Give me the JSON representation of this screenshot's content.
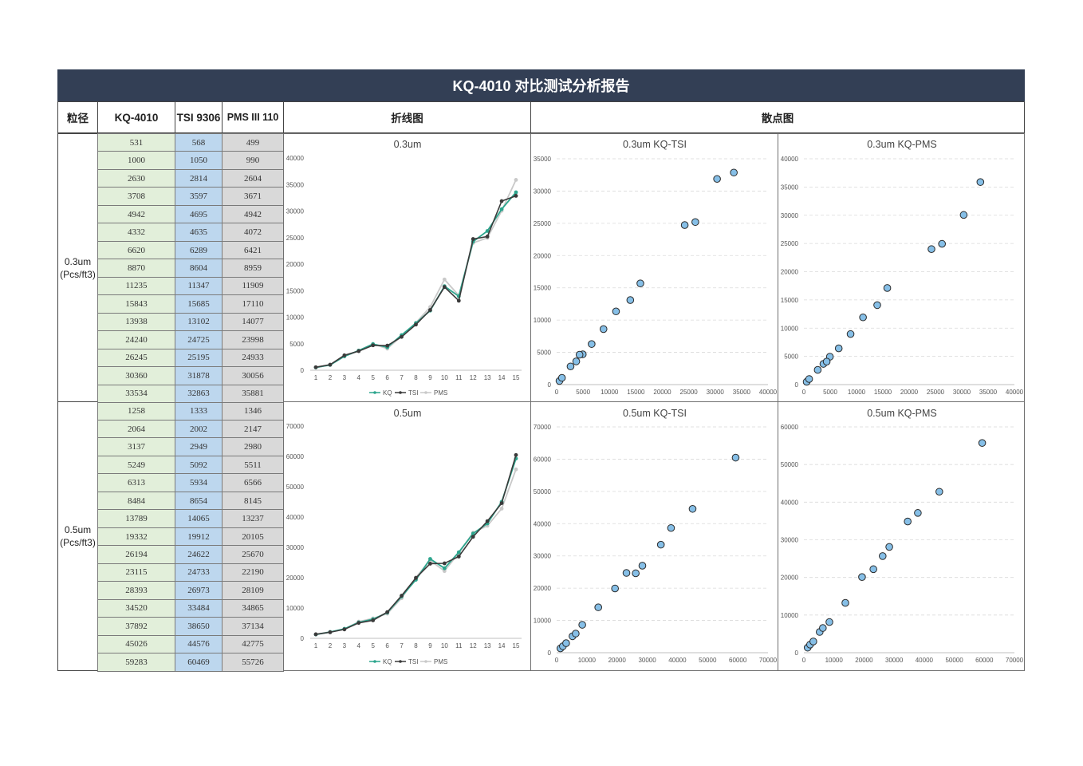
{
  "report": {
    "title": "KQ-4010 对比测试分析报告",
    "headers": {
      "size": "粒径",
      "kq": "KQ-4010",
      "tsi": "TSI 9306",
      "pms": "PMS III 110",
      "line": "折线图",
      "scatter": "散点图"
    }
  },
  "groups": [
    {
      "label_line1": "0.3um",
      "label_line2": "(Pcs/ft3)",
      "line_title": "0.3um",
      "scatter_tsi_title": "0.3um  KQ-TSI",
      "scatter_pms_title": "0.3um  KQ-PMS"
    },
    {
      "label_line1": "0.5um",
      "label_line2": "(Pcs/ft3)",
      "line_title": "0.5um",
      "scatter_tsi_title": "0.5um  KQ-TSI",
      "scatter_pms_title": "0.5um  KQ-PMS"
    }
  ],
  "chart_data": [
    {
      "type": "table",
      "group": "0.3um",
      "columns": [
        "KQ-4010",
        "TSI 9306",
        "PMS III 110"
      ],
      "kq": [
        531,
        1000,
        2630,
        3708,
        4942,
        4332,
        6620,
        8870,
        11235,
        15843,
        13938,
        24240,
        26245,
        30360,
        33534
      ],
      "tsi": [
        568,
        1050,
        2814,
        3597,
        4695,
        4635,
        6289,
        8604,
        11347,
        15685,
        13102,
        24725,
        25195,
        31878,
        32863
      ],
      "pms": [
        499,
        990,
        2604,
        3671,
        4942,
        4072,
        6421,
        8959,
        11909,
        17110,
        14077,
        23998,
        24933,
        30056,
        35881
      ]
    },
    {
      "type": "table",
      "group": "0.5um",
      "columns": [
        "KQ-4010",
        "TSI 9306",
        "PMS III 110"
      ],
      "kq": [
        1258,
        2064,
        3137,
        5249,
        6313,
        8484,
        13789,
        19332,
        26194,
        23115,
        28393,
        34520,
        37892,
        45026,
        59283
      ],
      "tsi": [
        1333,
        2002,
        2949,
        5092,
        5934,
        8654,
        14065,
        19912,
        24622,
        24733,
        26973,
        33484,
        38650,
        44576,
        60469
      ],
      "pms": [
        1346,
        2147,
        2980,
        5511,
        6566,
        8145,
        13237,
        20105,
        25670,
        22190,
        28109,
        34865,
        37134,
        42775,
        55726
      ]
    },
    {
      "type": "line",
      "title": "0.3um",
      "x": [
        "1",
        "2",
        "3",
        "4",
        "5",
        "6",
        "7",
        "8",
        "9",
        "10",
        "11",
        "12",
        "13",
        "14",
        "15"
      ],
      "ylim": [
        0,
        40000
      ],
      "yticks": [
        0,
        5000,
        10000,
        15000,
        20000,
        25000,
        30000,
        35000,
        40000
      ],
      "legend": "bottom",
      "series": [
        {
          "name": "KQ",
          "color": "#2ca58d",
          "values_ref": "0.3um.kq"
        },
        {
          "name": "TSI",
          "color": "#3a3a3a",
          "values_ref": "0.3um.tsi"
        },
        {
          "name": "PMS",
          "color": "#c9c9c9",
          "values_ref": "0.3um.pms"
        }
      ]
    },
    {
      "type": "line",
      "title": "0.5um",
      "x": [
        "1",
        "2",
        "3",
        "4",
        "5",
        "6",
        "7",
        "8",
        "9",
        "10",
        "11",
        "12",
        "13",
        "14",
        "15"
      ],
      "ylim": [
        0,
        70000
      ],
      "yticks": [
        0,
        10000,
        20000,
        30000,
        40000,
        50000,
        60000,
        70000
      ],
      "legend": "bottom",
      "series": [
        {
          "name": "KQ",
          "color": "#2ca58d",
          "values_ref": "0.5um.kq"
        },
        {
          "name": "TSI",
          "color": "#3a3a3a",
          "values_ref": "0.5um.tsi"
        },
        {
          "name": "PMS",
          "color": "#c9c9c9",
          "values_ref": "0.5um.pms"
        }
      ]
    },
    {
      "type": "scatter",
      "title": "0.3um  KQ-TSI",
      "x_ref": "0.3um.kq",
      "y_ref": "0.3um.tsi",
      "xlim": [
        0,
        40000
      ],
      "ylim": [
        0,
        35000
      ],
      "xticks": [
        0,
        5000,
        10000,
        15000,
        20000,
        25000,
        30000,
        35000,
        40000
      ],
      "yticks": [
        0,
        5000,
        10000,
        15000,
        20000,
        25000,
        30000,
        35000
      ],
      "marker_color": "#86bfe7"
    },
    {
      "type": "scatter",
      "title": "0.3um  KQ-PMS",
      "x_ref": "0.3um.kq",
      "y_ref": "0.3um.pms",
      "xlim": [
        0,
        40000
      ],
      "ylim": [
        0,
        40000
      ],
      "xticks": [
        0,
        5000,
        10000,
        15000,
        20000,
        25000,
        30000,
        35000,
        40000
      ],
      "yticks": [
        0,
        5000,
        10000,
        15000,
        20000,
        25000,
        30000,
        35000,
        40000
      ],
      "marker_color": "#86bfe7"
    },
    {
      "type": "scatter",
      "title": "0.5um  KQ-TSI",
      "x_ref": "0.5um.kq",
      "y_ref": "0.5um.tsi",
      "xlim": [
        0,
        70000
      ],
      "ylim": [
        0,
        70000
      ],
      "xticks": [
        0,
        10000,
        20000,
        30000,
        40000,
        50000,
        60000,
        70000
      ],
      "yticks": [
        0,
        10000,
        20000,
        30000,
        40000,
        50000,
        60000,
        70000
      ],
      "marker_color": "#86bfe7"
    },
    {
      "type": "scatter",
      "title": "0.5um  KQ-PMS",
      "x_ref": "0.5um.kq",
      "y_ref": "0.5um.pms",
      "xlim": [
        0,
        70000
      ],
      "ylim": [
        0,
        60000
      ],
      "xticks": [
        0,
        10000,
        20000,
        30000,
        40000,
        50000,
        60000,
        70000
      ],
      "yticks": [
        0,
        10000,
        20000,
        30000,
        40000,
        50000,
        60000
      ],
      "marker_color": "#86bfe7"
    }
  ]
}
